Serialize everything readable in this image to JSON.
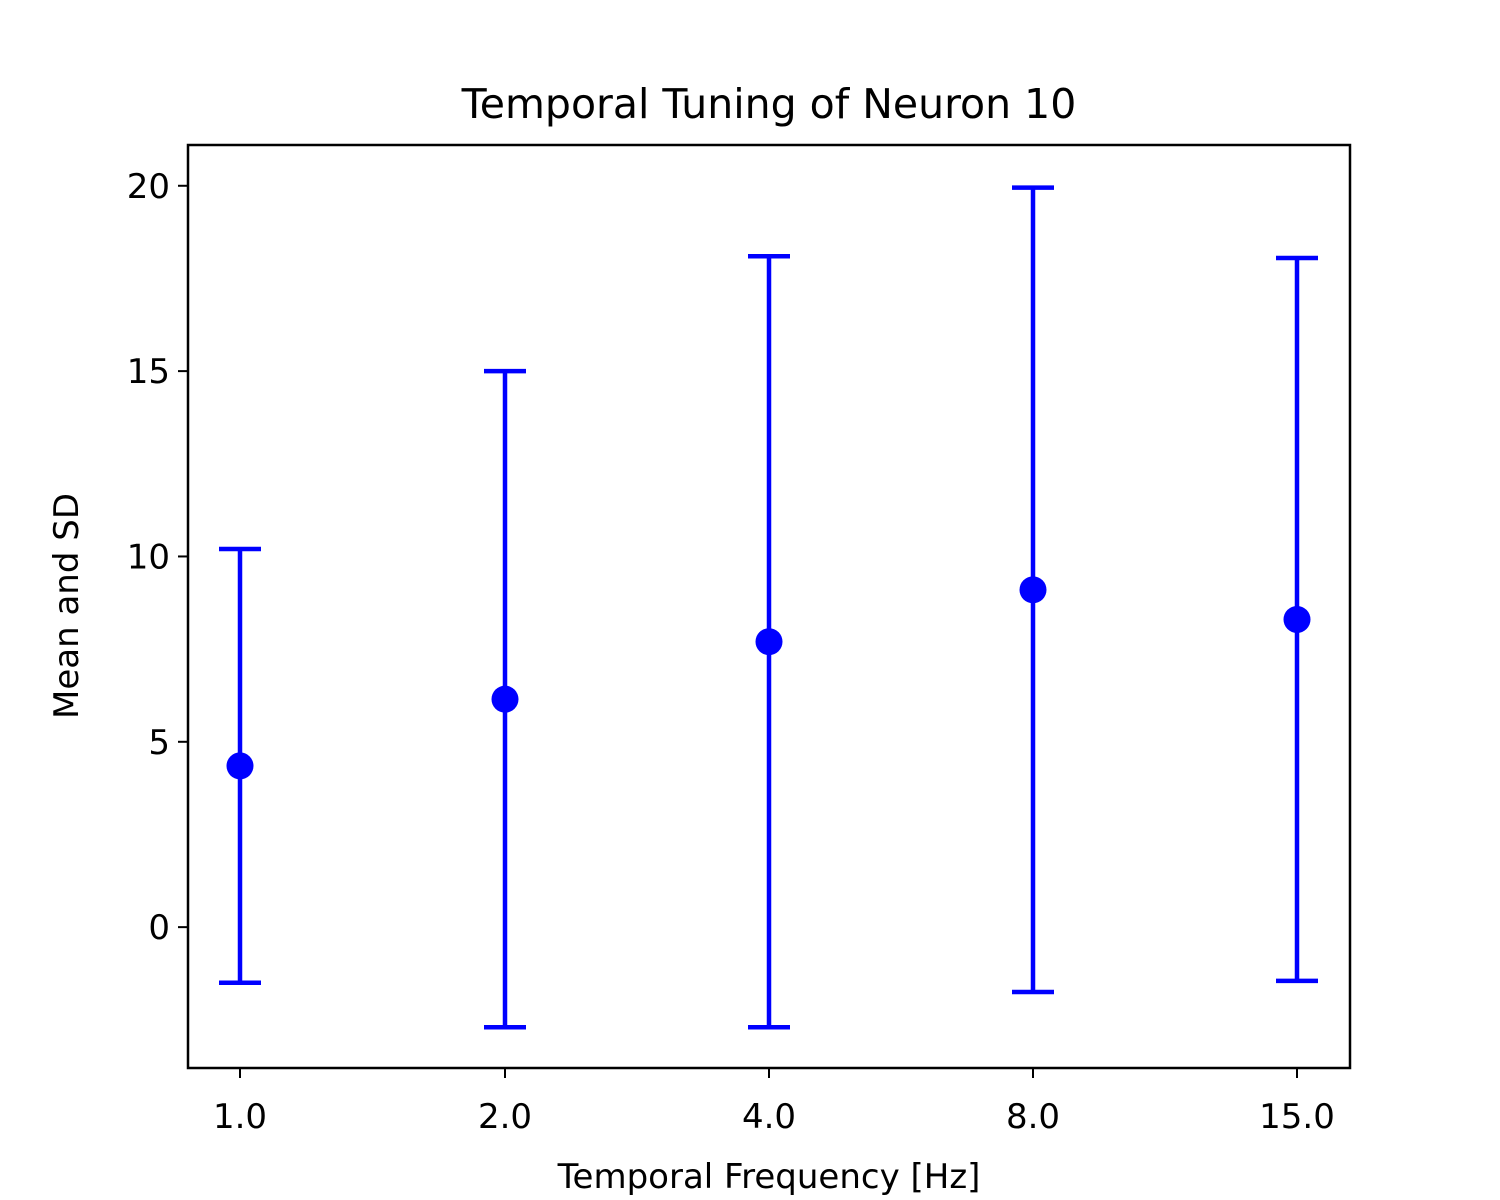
{
  "chart_data": {
    "type": "scatter",
    "title": "Temporal Tuning of Neuron 10",
    "xlabel": "Temporal Frequency [Hz]",
    "ylabel": "Mean and SD",
    "categories": [
      "1.0",
      "2.0",
      "4.0",
      "8.0",
      "15.0"
    ],
    "mean": [
      4.35,
      6.15,
      7.7,
      9.1,
      8.3
    ],
    "sd": [
      5.85,
      8.85,
      10.4,
      10.85,
      9.75
    ],
    "ylim": [
      -3.8,
      21.1
    ],
    "yticks": [
      0,
      5,
      10,
      15,
      20
    ],
    "ytick_labels": [
      "0",
      "5",
      "10",
      "15",
      "20"
    ],
    "series_color": "#0000ff",
    "grid": false,
    "legend": false
  }
}
